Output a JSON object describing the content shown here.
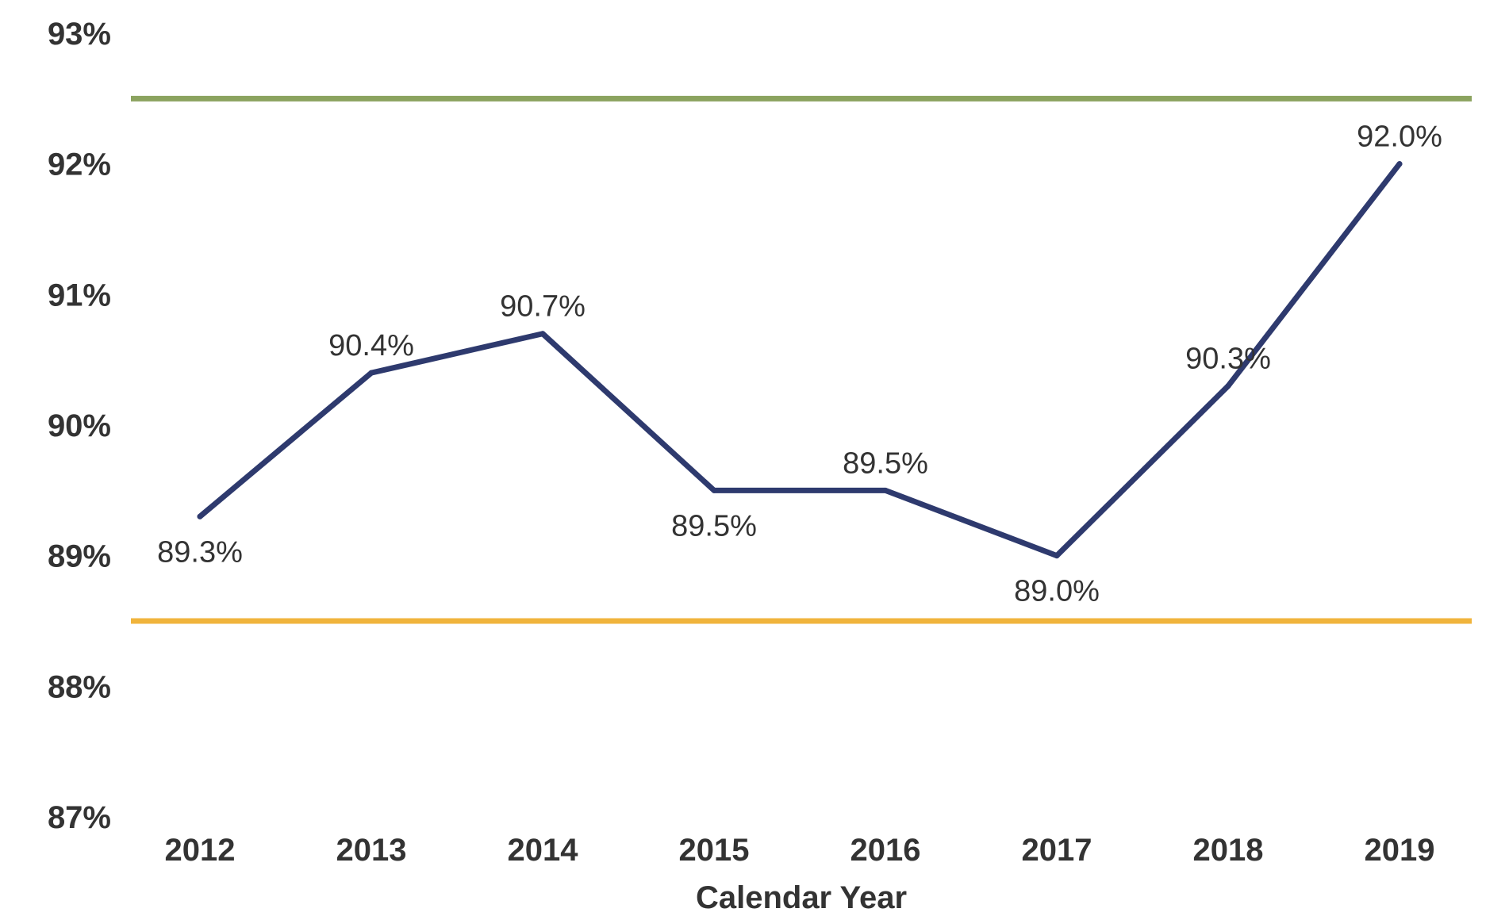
{
  "chart_data": {
    "type": "line",
    "title": "",
    "xlabel": "Calendar Year",
    "ylabel": "",
    "categories": [
      "2012",
      "2013",
      "2014",
      "2015",
      "2016",
      "2017",
      "2018",
      "2019"
    ],
    "series": [
      {
        "values": [
          89.3,
          90.4,
          90.7,
          89.5,
          89.5,
          89.0,
          90.3,
          92.0
        ],
        "labels": [
          "89.3%",
          "90.4%",
          "90.7%",
          "89.5%",
          "89.5%",
          "89.0%",
          "90.3%",
          "92.0%"
        ],
        "label_positions": [
          "below",
          "above",
          "above",
          "below",
          "above",
          "below",
          "above",
          "above"
        ],
        "color": "#2E3A6E"
      }
    ],
    "reference_lines": [
      {
        "value": 92.5,
        "color": "#8BA35F"
      },
      {
        "value": 88.5,
        "color": "#F0B43C"
      }
    ],
    "ylim": [
      87,
      93
    ],
    "y_ticks": [
      {
        "value": 93,
        "label": "93%"
      },
      {
        "value": 92,
        "label": "92%"
      },
      {
        "value": 91,
        "label": "91%"
      },
      {
        "value": 90,
        "label": "90%"
      },
      {
        "value": 89,
        "label": "89%"
      },
      {
        "value": 88,
        "label": "88%"
      },
      {
        "value": 87,
        "label": "87%"
      }
    ],
    "grid": false,
    "legend": "none"
  }
}
